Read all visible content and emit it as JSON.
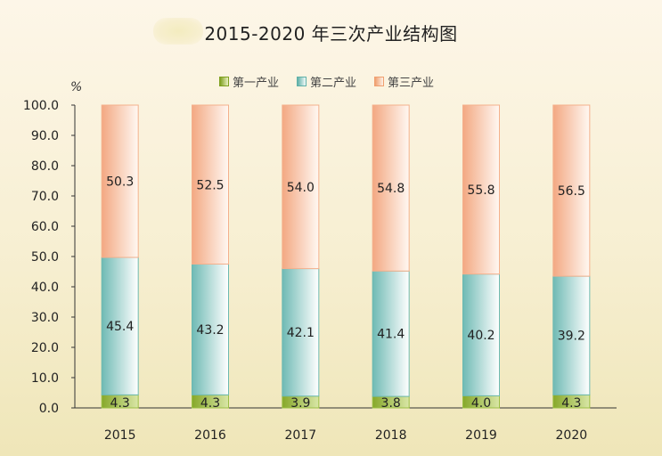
{
  "chart_data": {
    "type": "bar",
    "stacked": true,
    "title": "2015-2020 年三次产业结构图",
    "ylabel": "%",
    "ylim": [
      0,
      100
    ],
    "yticks": [
      "0.0",
      "10.0",
      "20.0",
      "30.0",
      "40.0",
      "50.0",
      "60.0",
      "70.0",
      "80.0",
      "90.0",
      "100.0"
    ],
    "categories": [
      "2015",
      "2016",
      "2017",
      "2018",
      "2019",
      "2020"
    ],
    "legend_position": "top",
    "series": [
      {
        "name": "第一产业",
        "values": [
          4.3,
          4.3,
          3.9,
          3.8,
          4.0,
          4.3
        ],
        "labels": [
          "4.3",
          "4.3",
          "3.9",
          "3.8",
          "4.0",
          "4.3"
        ],
        "color": "#9bb540"
      },
      {
        "name": "第二产业",
        "values": [
          45.4,
          43.2,
          42.1,
          41.4,
          40.2,
          39.2
        ],
        "labels": [
          "45.4",
          "43.2",
          "42.1",
          "41.4",
          "40.2",
          "39.2"
        ],
        "color": "#6fbab4"
      },
      {
        "name": "第三产业",
        "values": [
          50.3,
          52.5,
          54.0,
          54.8,
          55.8,
          56.5
        ],
        "labels": [
          "50.3",
          "52.5",
          "54.0",
          "54.8",
          "55.8",
          "56.5"
        ],
        "color": "#f2ac86"
      }
    ]
  }
}
